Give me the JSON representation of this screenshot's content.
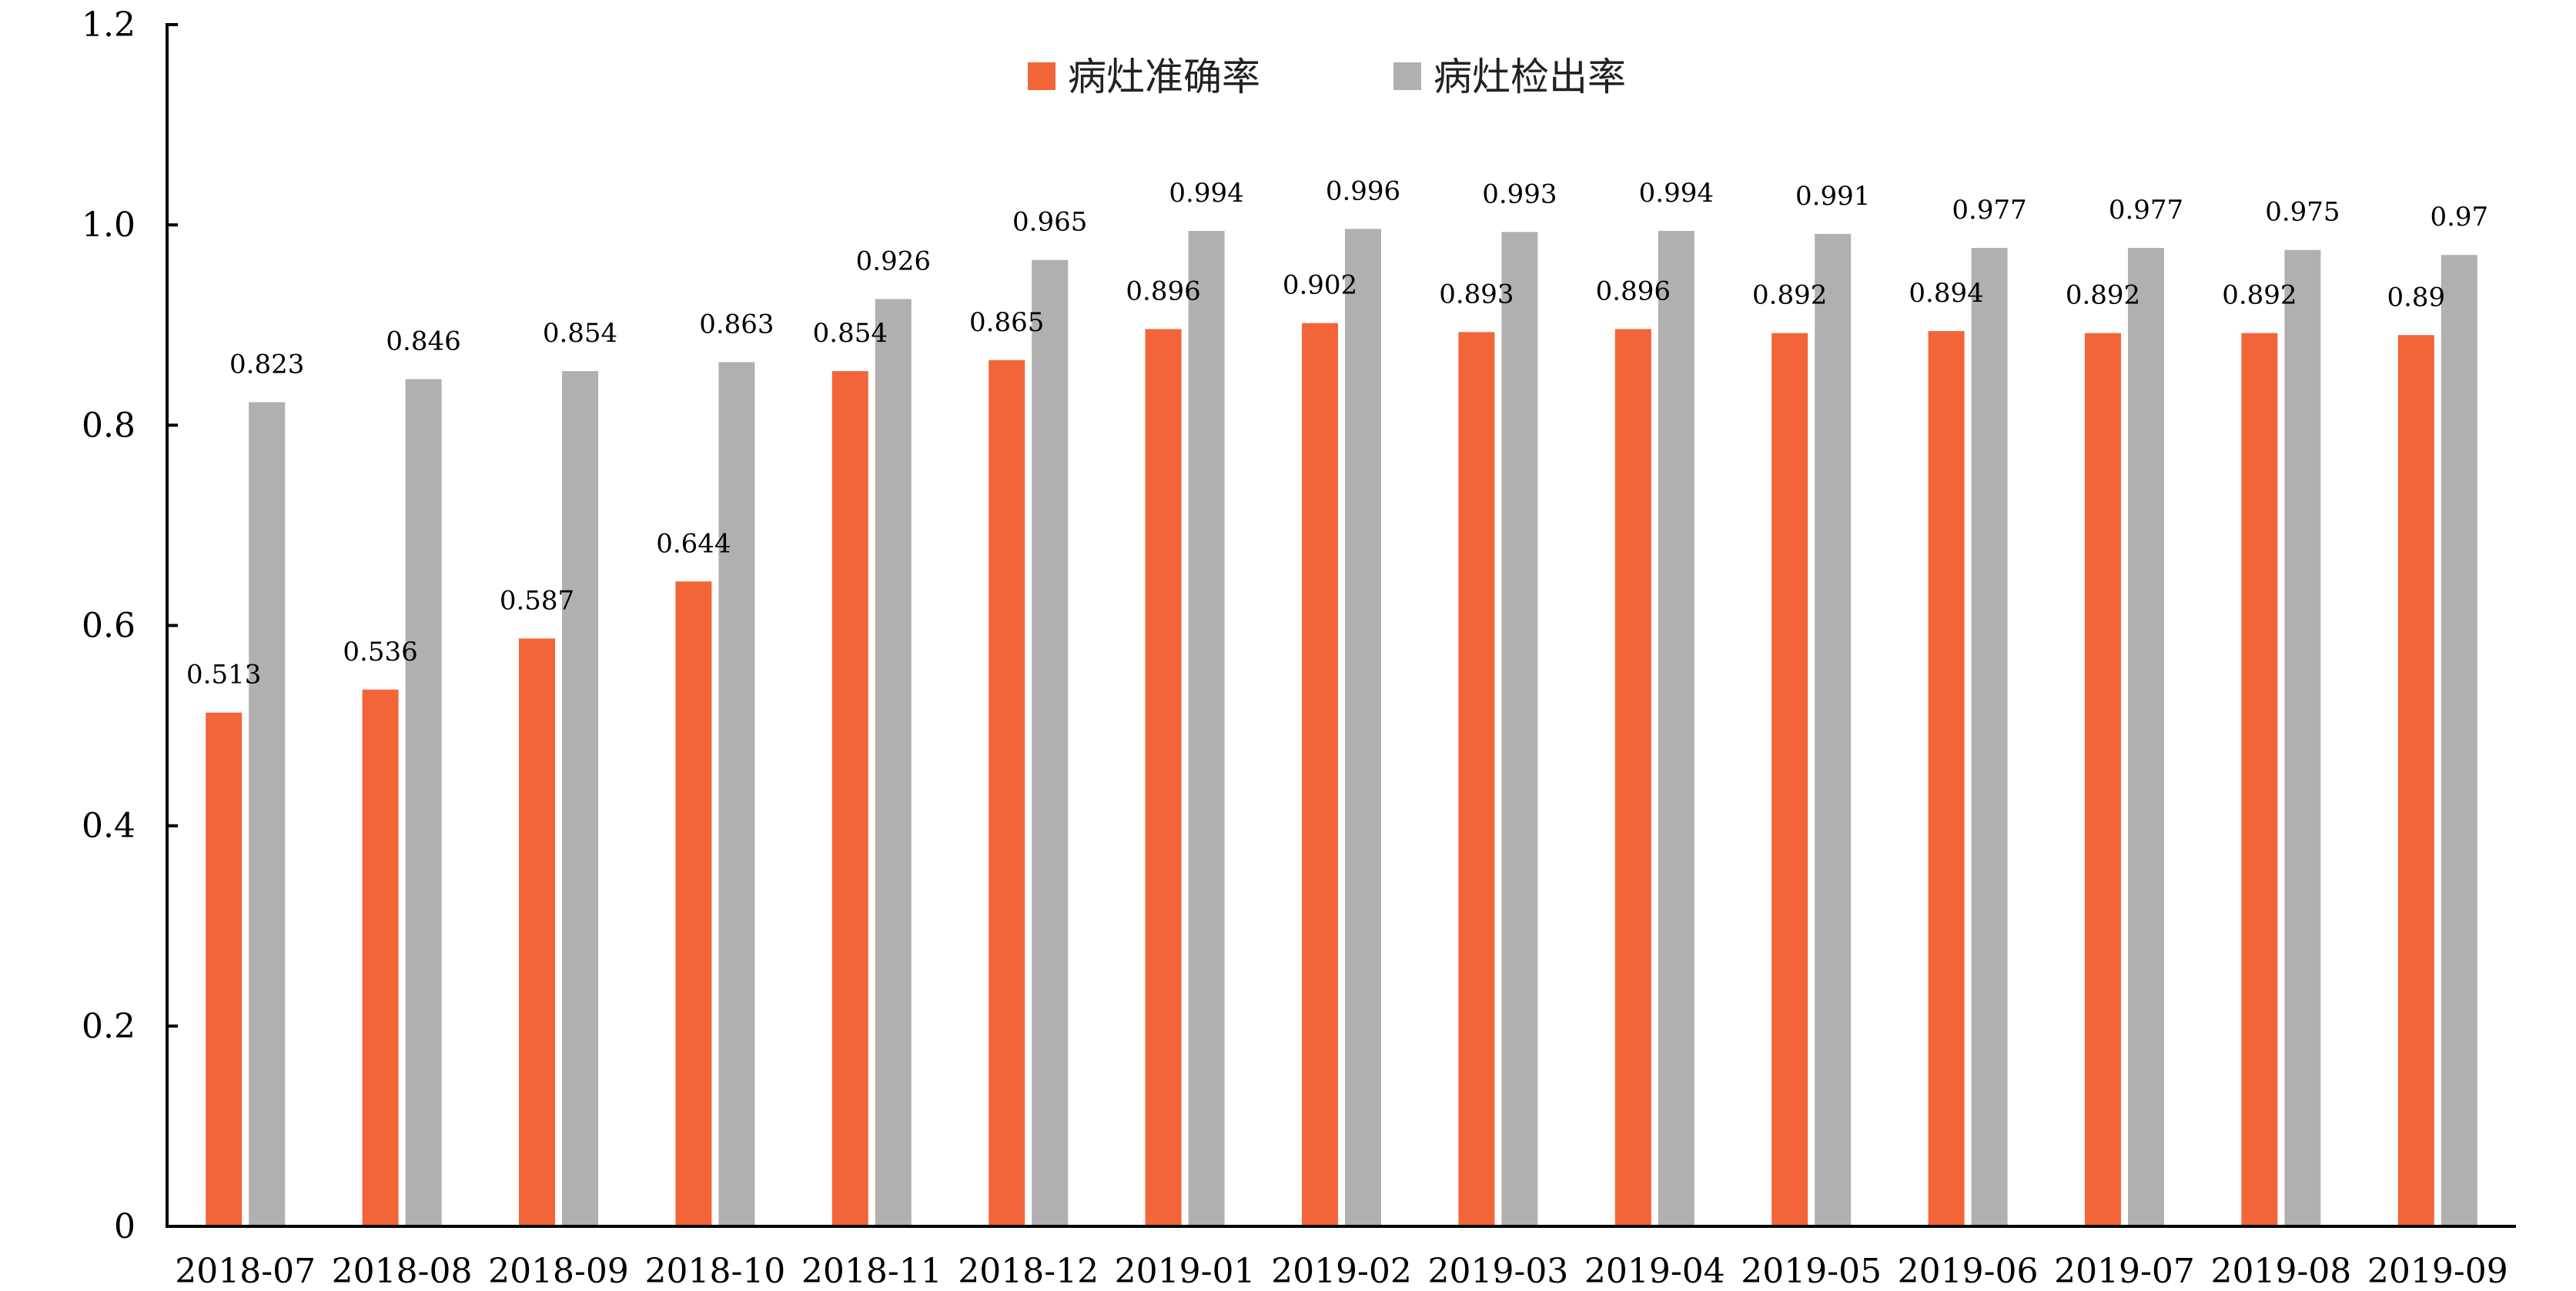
{
  "chart_data": {
    "type": "bar",
    "categories": [
      "2018-07",
      "2018-08",
      "2018-09",
      "2018-10",
      "2018-11",
      "2018-12",
      "2019-01",
      "2019-02",
      "2019-03",
      "2019-04",
      "2019-05",
      "2019-06",
      "2019-07",
      "2019-08",
      "2019-09"
    ],
    "series": [
      {
        "name": "病灶准确率",
        "color": "#f26539",
        "values": [
          0.513,
          0.536,
          0.587,
          0.644,
          0.854,
          0.865,
          0.896,
          0.902,
          0.893,
          0.896,
          0.892,
          0.894,
          0.892,
          0.892,
          0.89
        ],
        "labels": [
          "0.513",
          "0.536",
          "0.587",
          "0.644",
          "0.854",
          "0.865",
          "0.896",
          "0.902",
          "0.893",
          "0.896",
          "0.892",
          "0.894",
          "0.892",
          "0.892",
          "0.89"
        ]
      },
      {
        "name": "病灶检出率",
        "color": "#b0b0b0",
        "values": [
          0.823,
          0.846,
          0.854,
          0.863,
          0.926,
          0.965,
          0.994,
          0.996,
          0.993,
          0.994,
          0.991,
          0.977,
          0.977,
          0.975,
          0.97
        ],
        "labels": [
          "0.823",
          "0.846",
          "0.854",
          "0.863",
          "0.926",
          "0.965",
          "0.994",
          "0.996",
          "0.993",
          "0.994",
          "0.991",
          "0.977",
          "0.977",
          "0.975",
          "0.97"
        ]
      }
    ],
    "title": "",
    "xlabel": "",
    "ylabel": "",
    "ylim": [
      0,
      1.2
    ],
    "yticks": [
      "0",
      "0.2",
      "0.4",
      "0.6",
      "0.8",
      "1.0",
      "1.2"
    ],
    "grid": false,
    "legend_position": "top-center"
  }
}
